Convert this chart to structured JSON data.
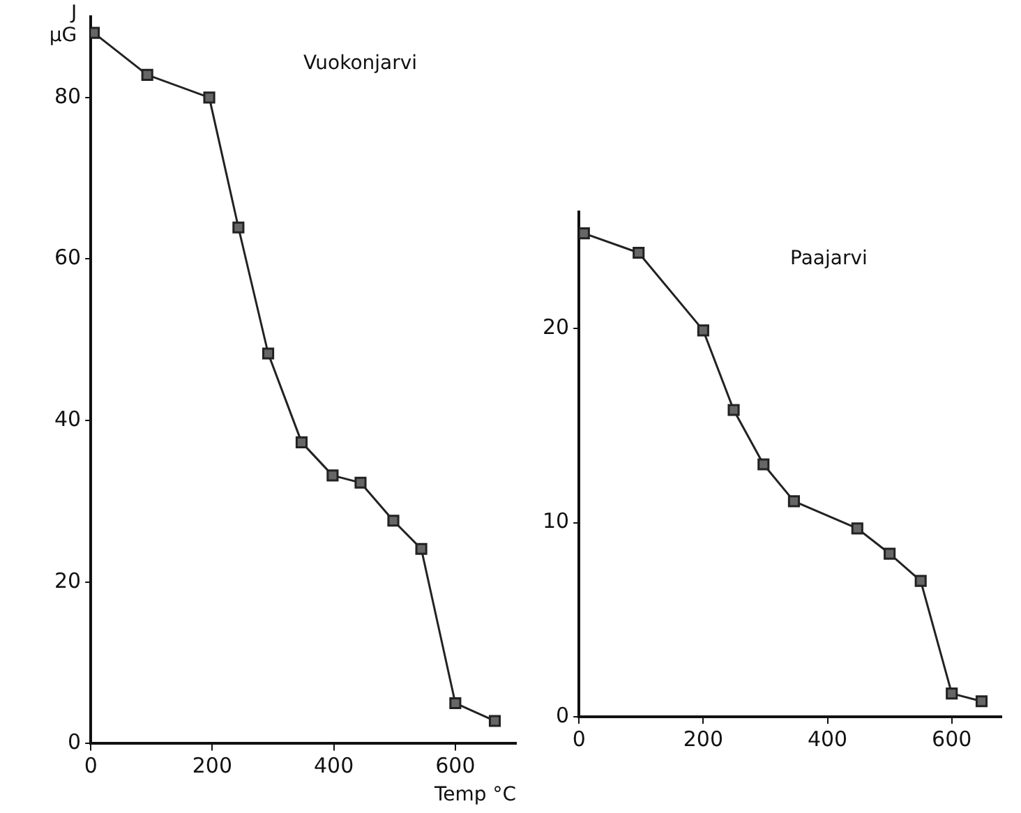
{
  "chart_data": [
    {
      "type": "line",
      "title": "Vuokonjarvi",
      "ylabel": "J μG",
      "xlabel": "Temp °C",
      "x": [
        5,
        93,
        195,
        243,
        292,
        347,
        398,
        444,
        498,
        544,
        600,
        665
      ],
      "values": [
        88,
        82.8,
        80,
        63.9,
        48.3,
        37.3,
        33.2,
        32.3,
        27.6,
        24.1,
        5,
        2.8
      ],
      "color": "#222222",
      "marker": "square",
      "line_style": "solid",
      "xlim": [
        0,
        700
      ],
      "xticks": [
        0,
        200,
        400,
        600
      ],
      "ylim": [
        0,
        90
      ],
      "yticks": [
        0,
        20,
        40,
        60,
        80
      ],
      "grid": false,
      "legend": false
    },
    {
      "type": "line",
      "title": "Paajarvi",
      "x": [
        8,
        96,
        200,
        249,
        297,
        346,
        448,
        500,
        550,
        600,
        648
      ],
      "values": [
        24.9,
        23.9,
        19.9,
        15.8,
        13,
        11.1,
        9.7,
        8.4,
        7,
        1.2,
        0.8
      ],
      "color": "#222222",
      "marker": "square",
      "line_style": "solid",
      "xlim": [
        0,
        680
      ],
      "xticks": [
        0,
        200,
        400,
        600
      ],
      "ylim": [
        0,
        26
      ],
      "yticks": [
        0,
        10,
        20
      ],
      "grid": false,
      "legend": false
    }
  ]
}
